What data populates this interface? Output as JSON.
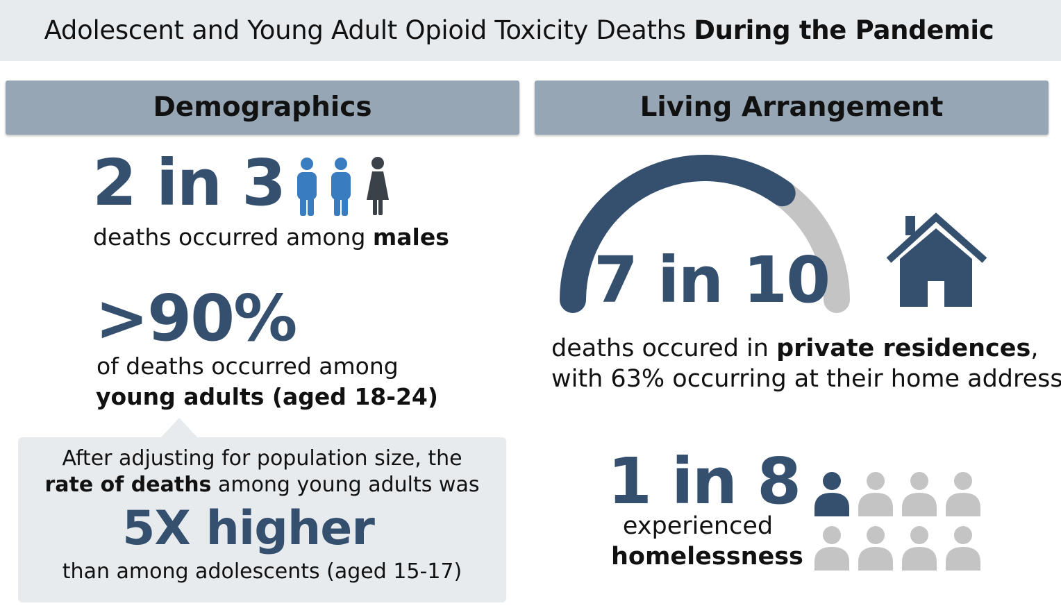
{
  "title": {
    "regular": "Adolescent and Young Adult Opioid Toxicity Deaths ",
    "bold": "During the Pandemic"
  },
  "sections": {
    "demographics": "Demographics",
    "living": "Living Arrangement"
  },
  "demographics": {
    "males": {
      "stat": "2 in 3",
      "text": "deaths occurred among ",
      "bold": "males",
      "highlighted_fraction": 0.667
    },
    "young_adults": {
      "stat": ">90%",
      "line1": "of deaths occurred among",
      "line2": "young adults (aged 18-24)"
    },
    "callout": {
      "line1": "After adjusting for population size, the",
      "line2_bold": "rate of deaths",
      "line2_rest": " among young adults was",
      "big": "5X higher",
      "line3": "than among adolescents (aged 15-17)"
    }
  },
  "living": {
    "residence": {
      "stat": "7 in 10",
      "line1_regular": "deaths occured in ",
      "line1_bold": "private residences",
      "line1_end": ",",
      "line2": "with 63% occurring at their home address",
      "gauge_fraction": 0.7
    },
    "homeless": {
      "stat": "1 in 8",
      "line1": "experienced",
      "line2": "homelessness",
      "highlighted_count": 1,
      "total_count": 8
    }
  },
  "colors": {
    "accent": "#35506e",
    "male_blue": "#3a7cc0",
    "female_dark": "#3b4149",
    "grey": "#c4c4c4",
    "header_bg": "#97a6b4",
    "panel_bg": "#e8ebee"
  },
  "icons": {
    "people": [
      "male-person-icon",
      "male-person-icon",
      "female-person-icon"
    ],
    "house": "house-icon",
    "homeless_grid": "person-icon"
  }
}
